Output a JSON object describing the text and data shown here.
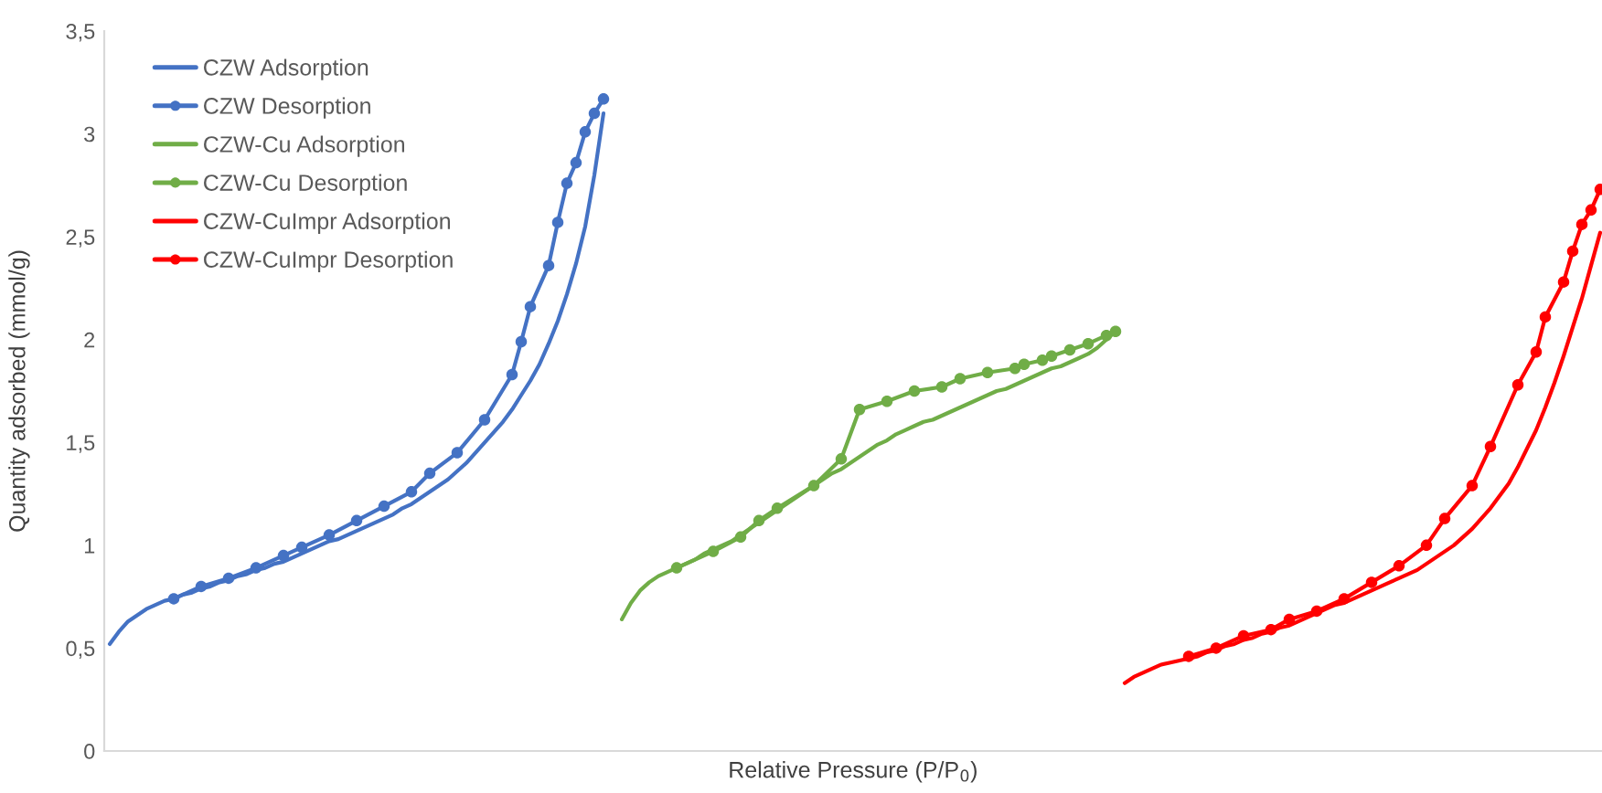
{
  "chart_data": {
    "type": "line",
    "xlabel": "Relative Pressure (P/P$_{0}$)",
    "ylabel": "Quantity adsorbed (mmol/g)",
    "ylim": [
      0,
      3.5
    ],
    "yticks": [
      0,
      {
        "value": 0.5,
        "label": "0,5"
      },
      1,
      {
        "value": 1.5,
        "label": "1,5"
      },
      2,
      {
        "value": 2.5,
        "label": "2,5"
      },
      3,
      {
        "value": 3.5,
        "label": "3,5"
      }
    ],
    "grid": false,
    "legend": "top left",
    "tick_labels": "y",
    "categories": [
      null,
      null,
      null,
      null,
      null,
      null,
      null,
      null,
      null,
      null,
      null,
      null,
      null,
      null,
      null,
      null,
      null,
      null,
      null,
      null,
      null,
      null,
      null,
      null,
      null,
      null,
      null,
      null,
      null,
      null,
      null,
      null,
      null,
      null,
      null,
      null,
      null,
      null,
      null,
      null,
      null,
      null,
      null,
      null,
      null,
      null,
      null,
      null,
      null,
      null,
      null,
      null,
      null,
      null,
      null,
      null,
      null,
      null,
      null,
      null,
      null,
      null,
      null,
      null,
      null,
      null,
      null,
      null,
      null,
      null,
      null,
      null,
      null,
      null,
      null,
      null,
      null,
      null,
      null,
      null,
      null,
      null,
      null,
      null,
      null,
      null,
      null,
      null,
      null,
      null,
      null,
      null,
      null,
      null,
      null,
      null,
      null,
      null,
      null,
      null,
      null,
      null,
      null,
      null,
      null,
      null,
      null,
      null,
      null,
      null,
      null,
      null,
      null,
      null,
      null,
      null,
      null,
      null,
      null,
      null,
      null,
      null,
      null,
      null,
      null,
      null,
      null,
      null,
      null,
      null,
      null,
      null,
      null,
      null,
      null,
      null,
      null,
      null,
      null,
      null,
      null,
      null,
      null,
      null,
      null,
      null,
      null,
      null,
      null,
      null,
      null,
      null,
      null,
      null,
      null,
      null,
      null,
      null,
      null,
      null,
      null,
      null,
      null,
      null
    ],
    "series": [
      {
        "name": "CZW Adsorption",
        "color": "#4472c4",
        "marker": "none",
        "values": [
          0.52,
          0.58,
          0.63,
          0.66,
          0.69,
          0.71,
          0.73,
          0.74,
          0.76,
          0.77,
          0.79,
          0.8,
          0.82,
          0.83,
          0.85,
          0.86,
          0.88,
          0.89,
          0.91,
          0.92,
          0.94,
          0.96,
          0.98,
          1.0,
          1.02,
          1.03,
          1.05,
          1.07,
          1.09,
          1.11,
          1.13,
          1.15,
          1.18,
          1.2,
          1.23,
          1.26,
          1.29,
          1.32,
          1.36,
          1.4,
          1.45,
          1.5,
          1.55,
          1.6,
          1.66,
          1.73,
          1.8,
          1.88,
          1.98,
          2.09,
          2.22,
          2.37,
          2.55,
          2.8,
          3.1,
          null,
          null,
          null,
          null,
          null,
          null,
          null,
          null,
          null,
          null,
          null,
          null,
          null,
          null,
          null,
          null,
          null,
          null,
          null,
          null,
          null,
          null,
          null,
          null,
          null,
          null,
          null,
          null,
          null,
          null,
          null,
          null,
          null,
          null,
          null,
          null,
          null,
          null,
          null,
          null,
          null,
          null,
          null,
          null,
          null,
          null,
          null,
          null,
          null,
          null,
          null,
          null,
          null,
          null,
          null,
          null,
          null,
          null,
          null,
          null,
          null,
          null,
          null,
          null,
          null,
          null,
          null,
          null,
          null,
          null,
          null,
          null,
          null,
          null,
          null,
          null,
          null,
          null,
          null,
          null,
          null,
          null,
          null,
          null,
          null,
          null,
          null,
          null,
          null,
          null,
          null,
          null,
          null,
          null,
          null,
          null,
          null,
          null,
          null,
          null,
          null,
          null,
          null,
          null,
          null,
          null,
          null,
          null,
          null
        ]
      },
      {
        "name": "CZW Desorption",
        "color": "#4472c4",
        "marker": "circle",
        "values": [
          null,
          null,
          null,
          null,
          null,
          null,
          null,
          0.74,
          null,
          null,
          0.8,
          null,
          null,
          0.84,
          null,
          null,
          0.89,
          null,
          null,
          0.95,
          null,
          0.99,
          null,
          null,
          1.05,
          null,
          null,
          1.12,
          null,
          null,
          1.19,
          null,
          null,
          1.26,
          null,
          1.35,
          null,
          null,
          1.45,
          null,
          null,
          1.61,
          null,
          null,
          1.83,
          1.99,
          2.16,
          null,
          2.36,
          2.57,
          2.76,
          2.86,
          3.01,
          3.1,
          3.17,
          null,
          null,
          null,
          null,
          null,
          null,
          null,
          null,
          null,
          null,
          null,
          null,
          null,
          null,
          null,
          null,
          null,
          null,
          null,
          null,
          null,
          null,
          null,
          null,
          null,
          null,
          null,
          null,
          null,
          null,
          null,
          null,
          null,
          null,
          null,
          null,
          null,
          null,
          null,
          null,
          null,
          null,
          null,
          null,
          null,
          null,
          null,
          null,
          null,
          null,
          null,
          null,
          null,
          null,
          null,
          null,
          null,
          null,
          null,
          null,
          null,
          null,
          null,
          null,
          null,
          null,
          null,
          null,
          null,
          null,
          null,
          null,
          null,
          null,
          null,
          null,
          null,
          null,
          null,
          null,
          null,
          null,
          null,
          null,
          null,
          null,
          null,
          null,
          null,
          null,
          null,
          null,
          null,
          null,
          null,
          null,
          null,
          null,
          null,
          null,
          null,
          null,
          null,
          null,
          null,
          null,
          null,
          null,
          null
        ]
      },
      {
        "name": "CZW-Cu Adsorption",
        "color": "#70ad47",
        "marker": "none",
        "values": [
          null,
          null,
          null,
          null,
          null,
          null,
          null,
          null,
          null,
          null,
          null,
          null,
          null,
          null,
          null,
          null,
          null,
          null,
          null,
          null,
          null,
          null,
          null,
          null,
          null,
          null,
          null,
          null,
          null,
          null,
          null,
          null,
          null,
          null,
          null,
          null,
          null,
          null,
          null,
          null,
          null,
          null,
          null,
          null,
          null,
          null,
          null,
          null,
          null,
          null,
          null,
          null,
          null,
          null,
          null,
          null,
          0.64,
          0.72,
          0.78,
          0.82,
          0.85,
          0.87,
          0.89,
          0.91,
          0.93,
          0.96,
          0.98,
          1.0,
          1.02,
          1.05,
          1.08,
          1.11,
          1.14,
          1.17,
          1.2,
          1.23,
          1.26,
          1.29,
          1.32,
          1.35,
          1.37,
          1.4,
          1.43,
          1.46,
          1.49,
          1.51,
          1.54,
          1.56,
          1.58,
          1.6,
          1.61,
          1.63,
          1.65,
          1.67,
          1.69,
          1.71,
          1.73,
          1.75,
          1.76,
          1.78,
          1.8,
          1.82,
          1.84,
          1.86,
          1.87,
          1.89,
          1.91,
          1.93,
          1.96,
          2.0,
          2.04,
          null,
          null,
          null,
          null,
          null,
          null,
          null,
          null,
          null,
          null,
          null,
          null,
          null,
          null,
          null,
          null,
          null,
          null,
          null,
          null,
          null,
          null,
          null,
          null,
          null,
          null,
          null,
          null,
          null,
          null,
          null,
          null,
          null,
          null,
          null,
          null,
          null,
          null,
          null,
          null,
          null,
          null,
          null,
          null,
          null,
          null,
          null,
          null,
          null,
          null,
          null,
          null,
          null
        ]
      },
      {
        "name": "CZW-Cu Desorption",
        "color": "#70ad47",
        "marker": "circle",
        "values": [
          null,
          null,
          null,
          null,
          null,
          null,
          null,
          null,
          null,
          null,
          null,
          null,
          null,
          null,
          null,
          null,
          null,
          null,
          null,
          null,
          null,
          null,
          null,
          null,
          null,
          null,
          null,
          null,
          null,
          null,
          null,
          null,
          null,
          null,
          null,
          null,
          null,
          null,
          null,
          null,
          null,
          null,
          null,
          null,
          null,
          null,
          null,
          null,
          null,
          null,
          null,
          null,
          null,
          null,
          null,
          null,
          null,
          null,
          null,
          null,
          null,
          null,
          0.89,
          null,
          null,
          null,
          0.97,
          null,
          null,
          1.04,
          null,
          1.12,
          null,
          1.18,
          null,
          null,
          null,
          1.29,
          null,
          null,
          1.42,
          null,
          1.66,
          null,
          null,
          1.7,
          null,
          null,
          1.75,
          null,
          null,
          1.77,
          null,
          1.81,
          null,
          null,
          1.84,
          null,
          null,
          1.86,
          1.88,
          null,
          1.9,
          1.92,
          null,
          1.95,
          null,
          1.98,
          null,
          2.02,
          2.04,
          null,
          null,
          null,
          null,
          null,
          null,
          null,
          null,
          null,
          null,
          null,
          null,
          null,
          null,
          null,
          null,
          null,
          null,
          null,
          null,
          null,
          null,
          null,
          null,
          null,
          null,
          null,
          null,
          null,
          null,
          null,
          null,
          null,
          null,
          null,
          null,
          null,
          null,
          null,
          null,
          null,
          null,
          null,
          null,
          null,
          null,
          null,
          null,
          null,
          null,
          null,
          null,
          null
        ]
      },
      {
        "name": "CZW-CuImpr Adsorption",
        "color": "#ff0000",
        "marker": "none",
        "values": [
          null,
          null,
          null,
          null,
          null,
          null,
          null,
          null,
          null,
          null,
          null,
          null,
          null,
          null,
          null,
          null,
          null,
          null,
          null,
          null,
          null,
          null,
          null,
          null,
          null,
          null,
          null,
          null,
          null,
          null,
          null,
          null,
          null,
          null,
          null,
          null,
          null,
          null,
          null,
          null,
          null,
          null,
          null,
          null,
          null,
          null,
          null,
          null,
          null,
          null,
          null,
          null,
          null,
          null,
          null,
          null,
          null,
          null,
          null,
          null,
          null,
          null,
          null,
          null,
          null,
          null,
          null,
          null,
          null,
          null,
          null,
          null,
          null,
          null,
          null,
          null,
          null,
          null,
          null,
          null,
          null,
          null,
          null,
          null,
          null,
          null,
          null,
          null,
          null,
          null,
          null,
          null,
          null,
          null,
          null,
          null,
          null,
          null,
          null,
          null,
          null,
          null,
          null,
          null,
          null,
          null,
          null,
          null,
          null,
          null,
          null,
          0.33,
          0.36,
          0.38,
          0.4,
          0.42,
          0.43,
          0.44,
          0.45,
          0.46,
          0.48,
          0.49,
          0.51,
          0.52,
          0.54,
          0.55,
          0.57,
          0.58,
          0.6,
          0.61,
          0.63,
          0.65,
          0.67,
          0.69,
          0.71,
          0.72,
          0.74,
          0.76,
          0.78,
          0.8,
          0.82,
          0.84,
          0.86,
          0.88,
          0.91,
          0.94,
          0.97,
          1.0,
          1.04,
          1.08,
          1.13,
          1.18,
          1.24,
          1.3,
          1.38,
          1.47,
          1.56,
          1.67,
          1.79,
          1.92,
          2.06,
          2.2,
          2.36,
          2.52
        ]
      },
      {
        "name": "CZW-CuImpr Desorption",
        "color": "#ff0000",
        "marker": "circle",
        "values": [
          null,
          null,
          null,
          null,
          null,
          null,
          null,
          null,
          null,
          null,
          null,
          null,
          null,
          null,
          null,
          null,
          null,
          null,
          null,
          null,
          null,
          null,
          null,
          null,
          null,
          null,
          null,
          null,
          null,
          null,
          null,
          null,
          null,
          null,
          null,
          null,
          null,
          null,
          null,
          null,
          null,
          null,
          null,
          null,
          null,
          null,
          null,
          null,
          null,
          null,
          null,
          null,
          null,
          null,
          null,
          null,
          null,
          null,
          null,
          null,
          null,
          null,
          null,
          null,
          null,
          null,
          null,
          null,
          null,
          null,
          null,
          null,
          null,
          null,
          null,
          null,
          null,
          null,
          null,
          null,
          null,
          null,
          null,
          null,
          null,
          null,
          null,
          null,
          null,
          null,
          null,
          null,
          null,
          null,
          null,
          null,
          null,
          null,
          null,
          null,
          null,
          null,
          null,
          null,
          null,
          null,
          null,
          null,
          null,
          null,
          null,
          null,
          null,
          null,
          null,
          null,
          null,
          null,
          0.46,
          null,
          null,
          0.5,
          null,
          null,
          0.56,
          null,
          null,
          0.59,
          null,
          0.64,
          null,
          null,
          0.68,
          null,
          null,
          0.74,
          null,
          null,
          0.82,
          null,
          null,
          0.9,
          null,
          null,
          1.0,
          null,
          1.13,
          null,
          null,
          1.29,
          null,
          1.48,
          null,
          null,
          1.78,
          null,
          1.94,
          2.11,
          null,
          2.28,
          2.43,
          2.56,
          2.63,
          2.73
        ]
      }
    ]
  }
}
